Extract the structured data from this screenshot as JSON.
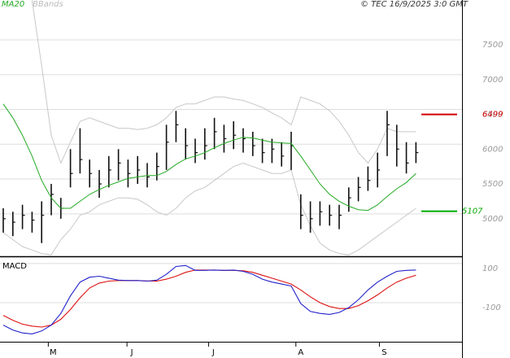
{
  "chart_data": [
    {
      "type": "ohlc",
      "source": "© TEC 16/9/2025 3:0 GMT",
      "x": [
        0,
        1,
        2,
        3,
        4,
        5,
        6,
        7,
        8,
        9,
        10,
        11,
        12,
        13,
        14,
        15,
        16,
        17,
        18,
        19,
        20,
        21,
        22,
        23,
        24,
        25,
        26,
        27,
        28,
        29,
        30,
        31,
        32,
        33,
        34,
        35,
        36,
        37,
        38,
        39,
        40,
        41,
        42,
        43
      ],
      "xlim": [
        -0.34,
        47.8
      ],
      "close": [
        5000,
        4950,
        5050,
        4980,
        5050,
        5350,
        5150,
        5650,
        5850,
        5650,
        5500,
        5700,
        5800,
        5650,
        5700,
        5600,
        5750,
        6100,
        6350,
        6050,
        5950,
        6050,
        6250,
        6150,
        6200,
        6150,
        6050,
        5950,
        6000,
        5900,
        6050,
        5050,
        5000,
        5100,
        5050,
        5050,
        5300,
        5450,
        5550,
        5700,
        6350,
        6000,
        5800,
        5950
      ],
      "high": [
        5150,
        5100,
        5200,
        5100,
        5250,
        5500,
        5300,
        6000,
        6300,
        5850,
        5700,
        5900,
        6000,
        5850,
        5900,
        5800,
        5950,
        6350,
        6550,
        6300,
        6150,
        6300,
        6450,
        6350,
        6400,
        6300,
        6250,
        6150,
        6150,
        6100,
        6250,
        5350,
        5250,
        5250,
        5200,
        5200,
        5450,
        5600,
        5750,
        5950,
        6550,
        6350,
        6100,
        6100
      ],
      "low": [
        4800,
        4750,
        4850,
        4800,
        4650,
        5050,
        5000,
        5450,
        5650,
        5450,
        5300,
        5450,
        5550,
        5450,
        5500,
        5450,
        5550,
        5700,
        6100,
        5850,
        5800,
        5850,
        6000,
        5950,
        6000,
        5950,
        5900,
        5800,
        5800,
        5750,
        5700,
        4850,
        4800,
        4900,
        4900,
        4850,
        5100,
        5250,
        5400,
        5450,
        5900,
        5750,
        5650,
        5800
      ],
      "series": [
        {
          "name": "MA20",
          "color": "#22aa22",
          "values": [
            6650,
            6450,
            6200,
            5900,
            5550,
            5300,
            5150,
            5150,
            5250,
            5350,
            5420,
            5480,
            5530,
            5580,
            5600,
            5620,
            5620,
            5680,
            5780,
            5860,
            5900,
            5950,
            6020,
            6080,
            6130,
            6170,
            6160,
            6130,
            6100,
            6090,
            6080,
            5900,
            5700,
            5500,
            5350,
            5250,
            5180,
            5130,
            5120,
            5200,
            5320,
            5430,
            5520,
            5650
          ]
        },
        {
          "name": "BBands",
          "color": "#c8c8c8",
          "upper": [
            null,
            null,
            null,
            8140,
            7200,
            6200,
            5800,
            6100,
            6400,
            6450,
            6400,
            6350,
            6300,
            6300,
            6280,
            6300,
            6350,
            6450,
            6600,
            6650,
            6650,
            6700,
            6750,
            6750,
            6720,
            6700,
            6650,
            6600,
            6520,
            6450,
            6350,
            6750,
            6700,
            6650,
            6550,
            6400,
            6200,
            5950,
            5800,
            6000,
            6300,
            6250,
            6250,
            6250
          ],
          "lower": [
            4800,
            4700,
            4600,
            4550,
            4500,
            4480,
            4700,
            4850,
            5050,
            5100,
            5200,
            5250,
            5300,
            5300,
            5280,
            5200,
            5100,
            5050,
            5150,
            5300,
            5400,
            5450,
            5550,
            5650,
            5750,
            5800,
            5750,
            5700,
            5650,
            5650,
            5700,
            5200,
            4900,
            4650,
            4550,
            4500,
            4480,
            4550,
            4650,
            4750,
            4850,
            4950,
            5050,
            5150
          ]
        }
      ],
      "levels": [
        {
          "value": 6499,
          "color": "#d00000"
        },
        {
          "value": 5107,
          "color": "#00aa00"
        }
      ],
      "ylim": [
        4460,
        8143
      ],
      "yticks": [
        7500,
        7000,
        6500,
        6000,
        5500,
        5000
      ],
      "grid": true
    },
    {
      "type": "line",
      "title": "MACD",
      "x": [
        0,
        1,
        2,
        3,
        4,
        5,
        6,
        7,
        8,
        9,
        10,
        11,
        12,
        13,
        14,
        15,
        16,
        17,
        18,
        19,
        20,
        21,
        22,
        23,
        24,
        25,
        26,
        27,
        28,
        29,
        30,
        31,
        32,
        33,
        34,
        35,
        36,
        37,
        38,
        39,
        40,
        41,
        42,
        43
      ],
      "xlim": [
        -0.34,
        47.8
      ],
      "xticks": [
        {
          "value": 5.2,
          "label": "M"
        },
        {
          "value": 13.4,
          "label": "J"
        },
        {
          "value": 21.9,
          "label": "J"
        },
        {
          "value": 31,
          "label": "A"
        },
        {
          "value": 39.7,
          "label": "S"
        }
      ],
      "series": [
        {
          "color": "#2222cc",
          "values": [
            -190,
            -215,
            -230,
            -235,
            -220,
            -190,
            -130,
            -40,
            30,
            55,
            60,
            50,
            40,
            38,
            38,
            35,
            40,
            70,
            110,
            115,
            90,
            90,
            92,
            90,
            92,
            85,
            70,
            45,
            30,
            20,
            10,
            -80,
            -120,
            -130,
            -135,
            -125,
            -100,
            -60,
            -10,
            30,
            60,
            85,
            90,
            92
          ]
        },
        {
          "color": "#dd1111",
          "values": [
            -140,
            -165,
            -185,
            -195,
            -200,
            -190,
            -160,
            -110,
            -50,
            0,
            25,
            35,
            38,
            38,
            38,
            36,
            35,
            45,
            60,
            80,
            92,
            92,
            92,
            90,
            90,
            88,
            80,
            65,
            50,
            35,
            20,
            -10,
            -45,
            -75,
            -95,
            -105,
            -105,
            -90,
            -65,
            -35,
            0,
            30,
            50,
            65
          ]
        }
      ],
      "ylim": [
        -275,
        158
      ],
      "yticks": [
        100,
        -100
      ],
      "grid": true
    }
  ]
}
